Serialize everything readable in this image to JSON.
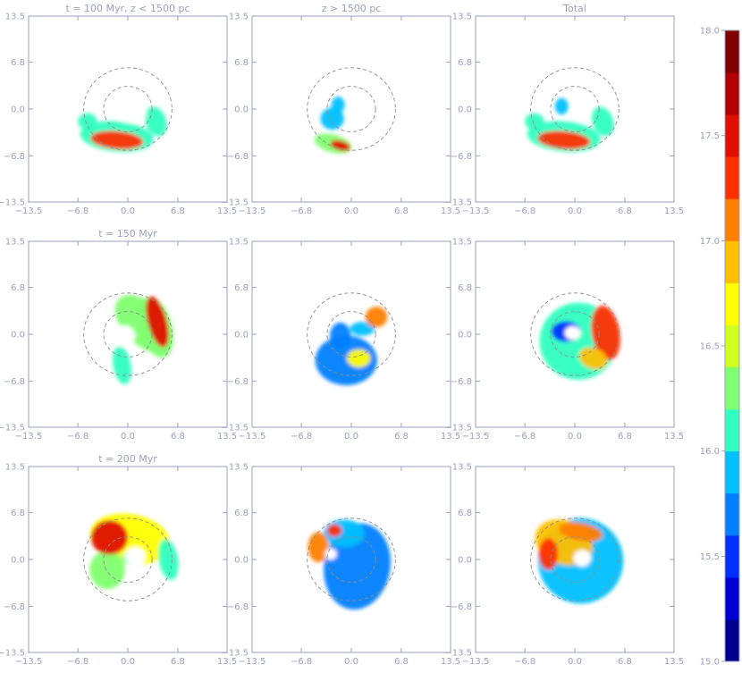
{
  "chart_data": {
    "type": "heatmap",
    "layout": {
      "rows": 3,
      "cols": 3
    },
    "row_titles": [
      "t = 100 Myr, z < 1500 pc",
      "t = 150 Myr",
      "t = 200 Myr"
    ],
    "column_titles": [
      "",
      "z > 1500 pc",
      "Total"
    ],
    "axes": {
      "xlim": [
        -13.5,
        13.5
      ],
      "ylim": [
        -13.5,
        13.5
      ],
      "xticks": [
        -13.5,
        -6.8,
        0.0,
        6.8,
        13.5
      ],
      "yticks": [
        -13.5,
        -6.8,
        0.0,
        6.8,
        13.5
      ],
      "xtick_labels": [
        "−13.5",
        "−6.8",
        "0.0",
        "6.8",
        "13.5"
      ],
      "ytick_labels": [
        "−13.5",
        "−6.8",
        "0.0",
        "6.8",
        "13.5"
      ],
      "grid": false
    },
    "reference_circles": {
      "radii": [
        3.3,
        6.0
      ],
      "center": [
        0,
        0
      ],
      "style": "dashed"
    },
    "colorbar": {
      "position": "right",
      "range": [
        15.0,
        18.0
      ],
      "ticks": [
        15.0,
        15.5,
        16.0,
        16.5,
        17.0,
        17.5,
        18.0
      ],
      "tick_labels": [
        "15.0",
        "15.5",
        "16.0",
        "16.5",
        "17.0",
        "17.5",
        "18.0"
      ],
      "colors": [
        "#000090",
        "#0000d0",
        "#0030ff",
        "#0080ff",
        "#00c0ff",
        "#30ffc0",
        "#80ff70",
        "#d0ff20",
        "#ffff00",
        "#ffc000",
        "#ff8000",
        "#ff3000",
        "#e01000",
        "#b00000",
        "#800000"
      ]
    },
    "panels": [
      {
        "row": 0,
        "col": 0,
        "title": "t = 100 Myr, z < 1500 pc",
        "blobs": [
          {
            "cx": -1.5,
            "cy": -4.0,
            "rx": 5.0,
            "ry": 2.2,
            "rot": -5,
            "level": 16.1
          },
          {
            "cx": -5.5,
            "cy": -1.8,
            "rx": 1.3,
            "ry": 1.2,
            "rot": 0,
            "level": 16.0
          },
          {
            "cx": 3.8,
            "cy": -1.8,
            "rx": 1.4,
            "ry": 2.2,
            "rot": 20,
            "level": 16.1
          },
          {
            "cx": -1.5,
            "cy": -4.5,
            "rx": 3.6,
            "ry": 1.3,
            "rot": -5,
            "level": 17.4
          }
        ]
      },
      {
        "row": 0,
        "col": 1,
        "title": "z > 1500 pc",
        "blobs": [
          {
            "cx": -2.5,
            "cy": -5.0,
            "rx": 2.6,
            "ry": 1.3,
            "rot": -15,
            "level": 16.3
          },
          {
            "cx": -2.6,
            "cy": -1.4,
            "rx": 1.6,
            "ry": 1.6,
            "rot": 0,
            "level": 15.9
          },
          {
            "cx": -1.8,
            "cy": 0.6,
            "rx": 0.9,
            "ry": 1.2,
            "rot": 0,
            "level": 15.8
          },
          {
            "cx": -1.5,
            "cy": -5.3,
            "rx": 1.4,
            "ry": 0.7,
            "rot": -15,
            "level": 17.5
          }
        ]
      },
      {
        "row": 0,
        "col": 2,
        "title": "Total",
        "blobs": [
          {
            "cx": -1.5,
            "cy": -4.0,
            "rx": 5.0,
            "ry": 2.2,
            "rot": -5,
            "level": 16.1
          },
          {
            "cx": -5.5,
            "cy": -1.8,
            "rx": 1.3,
            "ry": 1.2,
            "rot": 0,
            "level": 16.0
          },
          {
            "cx": 3.8,
            "cy": -1.8,
            "rx": 1.4,
            "ry": 2.2,
            "rot": 20,
            "level": 16.1
          },
          {
            "cx": -1.8,
            "cy": 0.4,
            "rx": 0.9,
            "ry": 1.2,
            "rot": 0,
            "level": 15.9
          },
          {
            "cx": -1.5,
            "cy": -4.5,
            "rx": 3.6,
            "ry": 1.3,
            "rot": -5,
            "level": 17.4
          }
        ]
      },
      {
        "row": 1,
        "col": 0,
        "title": "t = 150 Myr",
        "blobs": [
          {
            "cx": 2.2,
            "cy": 1.5,
            "rx": 4.8,
            "ry": 3.0,
            "rot": -45,
            "level": 16.3
          },
          {
            "cx": 3.8,
            "cy": 1.0,
            "rx": 2.2,
            "ry": 4.5,
            "rot": 15,
            "level": 16.4
          },
          {
            "cx": -0.8,
            "cy": -4.5,
            "rx": 1.2,
            "ry": 2.8,
            "rot": 10,
            "level": 16.0
          },
          {
            "cx": 4.0,
            "cy": 1.8,
            "rx": 1.3,
            "ry": 3.8,
            "rot": 15,
            "level": 17.5
          }
        ]
      },
      {
        "row": 1,
        "col": 1,
        "title": "",
        "blobs": [
          {
            "cx": -0.7,
            "cy": -3.8,
            "rx": 4.2,
            "ry": 3.6,
            "rot": 0,
            "level": 15.7
          },
          {
            "cx": -1.5,
            "cy": -0.2,
            "rx": 1.4,
            "ry": 1.9,
            "rot": 0,
            "level": 15.7
          },
          {
            "cx": 1.5,
            "cy": 0.8,
            "rx": 1.7,
            "ry": 1.0,
            "rot": 0,
            "level": 15.8
          },
          {
            "cx": 3.4,
            "cy": 2.5,
            "rx": 1.5,
            "ry": 1.5,
            "rot": 0,
            "level": 17.2
          },
          {
            "cx": 1.0,
            "cy": -3.5,
            "rx": 1.6,
            "ry": 1.3,
            "rot": 0,
            "level": 16.6
          }
        ]
      },
      {
        "row": 1,
        "col": 2,
        "title": "",
        "blobs": [
          {
            "cx": 0.5,
            "cy": -1.0,
            "rx": 5.3,
            "ry": 5.6,
            "rot": 0,
            "level": 16.2
          },
          {
            "cx": 4.2,
            "cy": 0.2,
            "rx": 1.9,
            "ry": 4.0,
            "rot": 10,
            "level": 17.3
          },
          {
            "cx": -1.2,
            "cy": 0.4,
            "rx": 2.0,
            "ry": 1.5,
            "rot": 0,
            "level": 15.6
          },
          {
            "cx": 2.5,
            "cy": -3.5,
            "rx": 2.0,
            "ry": 1.5,
            "rot": -20,
            "level": 16.8
          }
        ]
      },
      {
        "row": 2,
        "col": 0,
        "title": "t = 200 Myr",
        "blobs": [
          {
            "cx": 0.3,
            "cy": 3.0,
            "rx": 5.5,
            "ry": 3.6,
            "rot": -10,
            "level": 16.6
          },
          {
            "cx": -2.8,
            "cy": -1.5,
            "rx": 2.4,
            "ry": 2.8,
            "rot": 0,
            "level": 16.4
          },
          {
            "cx": 5.5,
            "cy": 0.0,
            "rx": 1.3,
            "ry": 3.0,
            "rot": 10,
            "level": 16.0
          },
          {
            "cx": -2.5,
            "cy": 3.2,
            "rx": 2.5,
            "ry": 2.5,
            "rot": 0,
            "level": 17.5
          },
          {
            "cx": 0.5,
            "cy": 0.3,
            "rx": 1.2,
            "ry": 1.0,
            "rot": 0,
            "level": 16.0
          }
        ]
      },
      {
        "row": 2,
        "col": 1,
        "title": "",
        "blobs": [
          {
            "cx": 0.8,
            "cy": -1.0,
            "rx": 4.5,
            "ry": 6.3,
            "rot": -10,
            "level": 15.7
          },
          {
            "cx": -1.0,
            "cy": 3.8,
            "rx": 2.8,
            "ry": 2.0,
            "rot": 0,
            "level": 15.9
          },
          {
            "cx": -4.5,
            "cy": 1.8,
            "rx": 1.4,
            "ry": 2.2,
            "rot": 0,
            "level": 17.1
          },
          {
            "cx": -2.3,
            "cy": 4.2,
            "rx": 1.0,
            "ry": 0.9,
            "rot": 0,
            "level": 17.4
          }
        ]
      },
      {
        "row": 2,
        "col": 2,
        "title": "",
        "blobs": [
          {
            "cx": 0.8,
            "cy": -0.2,
            "rx": 5.8,
            "ry": 6.2,
            "rot": 0,
            "level": 15.8
          },
          {
            "cx": -1.5,
            "cy": 2.5,
            "rx": 4.0,
            "ry": 3.2,
            "rot": -20,
            "level": 16.8
          },
          {
            "cx": -3.6,
            "cy": 0.8,
            "rx": 1.3,
            "ry": 2.3,
            "rot": 0,
            "level": 17.4
          },
          {
            "cx": 0.8,
            "cy": 4.0,
            "rx": 3.0,
            "ry": 1.3,
            "rot": -10,
            "level": 17.0
          }
        ]
      }
    ],
    "holes": [
      {
        "panel": 0,
        "cx": 0.5,
        "cy": -0.8,
        "rx": 2.0,
        "ry": 1.2
      },
      {
        "panel": 3,
        "cx": -0.6,
        "cy": -0.2,
        "rx": 1.6,
        "ry": 1.5
      },
      {
        "panel": 5,
        "cx": -0.3,
        "cy": 0.2,
        "rx": 1.1,
        "ry": 1.0
      },
      {
        "panel": 6,
        "cx": 1.0,
        "cy": 0.5,
        "rx": 1.4,
        "ry": 1.3
      },
      {
        "panel": 7,
        "cx": -2.8,
        "cy": 0.8,
        "rx": 0.8,
        "ry": 0.8
      },
      {
        "panel": 8,
        "cx": 1.0,
        "cy": 0.2,
        "rx": 1.2,
        "ry": 1.2
      }
    ]
  }
}
